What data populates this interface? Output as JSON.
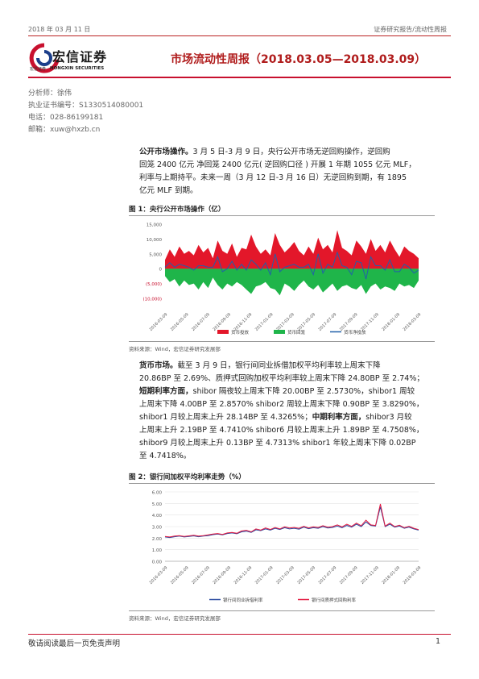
{
  "header": {
    "date": "2018 年 03 月 11 日",
    "category": "证券研究报告/流动性周报",
    "logo_cn": "宏信证券",
    "logo_en": "HONGXIN SECURITIES",
    "logo_sub": "宏信证券",
    "title": "市场流动性周报（2018.03.05—2018.03.09）"
  },
  "analyst": {
    "name": "分析师：徐伟",
    "cert": "执业证书编号：S1330514080001",
    "phone": "电话：028-86199181",
    "email": "邮箱：xuw@hxzb.cn"
  },
  "paragraph1": {
    "lead": "公开市场操作。",
    "lines": [
      "3 月 5 日-3 月 9 日，央行公开市场无逆回购操作，逆回购",
      "回笼 2400 亿元 净回笼 2400 亿元( 逆回购口径 ) 开展 1 年期 1055 亿元 MLF，",
      "利率与上期持平。未来一周（3 月 12 日-3 月 16 日）无逆回购到期，有 1895",
      "亿元 MLF 到期。"
    ]
  },
  "figure1": {
    "caption": "图 1：央行公开市场操作（亿）",
    "source": "资料来源：Wind，宏信证券研究发展部",
    "legend": [
      "货币投放",
      "货币回笼",
      "货币净投放"
    ]
  },
  "paragraph2": {
    "l1a": "货币市场。",
    "l1b": "截至 3 月 9 日，银行间同业拆借加权平均利率较上周末下降",
    "l2": "20.86BP 至 2.69%、质押式回购加权平均利率较上周末下降 24.80BP 至 2.74%；",
    "l3a": "短期利率方面，",
    "l3b": "shibor 隔夜较上周末下降 20.00BP 至 2.5730%，shibor1 周较",
    "l4": "上周末下降 4.00BP 至 2.8570% shibor2 周较上周末下降 0.90BP 至 3.8290%，",
    "l5a": "shibor1 月较上周末上升 28.14BP 至 4.3265%；",
    "l5b": "中期利率方面，",
    "l5c": "shibor3 月较",
    "l6": "上周末上升 2.19BP 至 4.7410% shibor6 月较上周末上升 1.89BP 至 4.7508%，",
    "l7": "shibor9 月较上周末上升 0.13BP 至 4.7313% shibor1 年较上周末下降 0.02BP",
    "l8": "至 4.7418%。"
  },
  "figure2": {
    "caption": "图 2：银行间加权平均利率走势（%）",
    "source": "资料来源：Wind，宏信证券研究发展部",
    "legend": [
      "银行间同业拆借利率",
      "银行间质押式回购利率"
    ]
  },
  "footer": {
    "disclaimer": "敬请阅读最后一页免责声明",
    "page": "1"
  },
  "chart_data": [
    {
      "type": "area",
      "x_ticks": [
        "2016-03-09",
        "2016-05-09",
        "2016-07-09",
        "2016-09-09",
        "2016-11-09",
        "2017-01-09",
        "2017-03-09",
        "2017-05-09",
        "2017-07-09",
        "2017-09-09",
        "2017-11-09",
        "2018-01-09",
        "2018-03-09"
      ],
      "y_ticks": [
        "15,000",
        "10,000",
        "5,000",
        "0",
        "(5,000)",
        "(10,000)"
      ],
      "ylim": [
        -10000,
        15000
      ],
      "series": [
        {
          "name": "货币投放",
          "color": "#e3172a",
          "values": [
            3000,
            6500,
            4000,
            7500,
            5000,
            6000,
            4500,
            8000,
            5500,
            7000,
            3500,
            9500,
            6000,
            5000,
            8500,
            4000,
            7000,
            6500,
            11500,
            7500,
            5000,
            6500,
            4500,
            12000,
            8000,
            5500,
            7000,
            9000,
            6000,
            4500,
            7500,
            5000,
            10500,
            6500,
            8000,
            5500,
            13000,
            7000,
            6000,
            4500,
            9500,
            7500,
            5000,
            10000,
            6000,
            8000,
            5500,
            9500,
            6500,
            4000,
            7500,
            6000,
            5000,
            3500
          ]
        },
        {
          "name": "货币回笼",
          "color": "#1fb54a",
          "values": [
            -2500,
            -4500,
            -3500,
            -6000,
            -4000,
            -5500,
            -5000,
            -7000,
            -4500,
            -6500,
            -3000,
            -5500,
            -7000,
            -5000,
            -6000,
            -4500,
            -5500,
            -7000,
            -8500,
            -6000,
            -5500,
            -4500,
            -6500,
            -7000,
            -9000,
            -5000,
            -6000,
            -7500,
            -5500,
            -4000,
            -6000,
            -7000,
            -5500,
            -8000,
            -6500,
            -5000,
            -7500,
            -6000,
            -5500,
            -6500,
            -7000,
            -5500,
            -8500,
            -6000,
            -5000,
            -7000,
            -6000,
            -6500,
            -7500,
            -5000,
            -6000,
            -5500,
            -6500,
            -4000
          ]
        },
        {
          "name": "货币净投放",
          "color": "#2160a8",
          "values": [
            500,
            2000,
            500,
            1500,
            1000,
            500,
            -500,
            1000,
            1000,
            500,
            500,
            4000,
            -1000,
            0,
            2500,
            -500,
            1500,
            -500,
            3000,
            1500,
            -500,
            2000,
            -2000,
            5000,
            -1000,
            500,
            1000,
            1500,
            500,
            500,
            1500,
            -2000,
            5000,
            -1500,
            1500,
            500,
            5500,
            1000,
            500,
            -2000,
            2500,
            2000,
            -3500,
            4000,
            1000,
            1000,
            -500,
            3000,
            -1000,
            -1000,
            1500,
            500,
            -1500,
            -500
          ]
        }
      ]
    },
    {
      "type": "line",
      "x_ticks": [
        "2016-03-09",
        "2016-05-09",
        "2016-07-09",
        "2016-09-09",
        "2016-11-09",
        "2017-01-09",
        "2017-03-09",
        "2017-05-09",
        "2017-07-09",
        "2017-09-09",
        "2017-11-09",
        "2018-01-09",
        "2018-03-09"
      ],
      "y_ticks": [
        "6.00",
        "5.00",
        "4.00",
        "3.00",
        "2.00",
        "1.00",
        "0.00"
      ],
      "ylim": [
        0,
        6
      ],
      "series": [
        {
          "name": "银行间同业拆借利率",
          "color": "#2a4aa0",
          "values": [
            2.1,
            2.05,
            2.12,
            2.18,
            2.1,
            2.15,
            2.2,
            2.12,
            2.18,
            2.22,
            2.3,
            2.35,
            2.28,
            2.4,
            2.45,
            2.38,
            2.55,
            2.6,
            2.5,
            2.72,
            2.65,
            2.8,
            2.7,
            2.85,
            2.75,
            2.9,
            2.8,
            2.85,
            2.78,
            2.95,
            2.82,
            2.9,
            2.85,
            3.0,
            2.88,
            2.92,
            3.05,
            2.9,
            3.1,
            2.95,
            3.2,
            3.0,
            3.4,
            3.1,
            3.05,
            4.7,
            3.0,
            3.2,
            2.95,
            3.05,
            2.85,
            2.95,
            2.8,
            2.69
          ]
        },
        {
          "name": "银行间质押式回购利率",
          "color": "#e3173f",
          "values": [
            2.15,
            2.1,
            2.18,
            2.22,
            2.15,
            2.2,
            2.25,
            2.18,
            2.22,
            2.28,
            2.35,
            2.4,
            2.32,
            2.45,
            2.5,
            2.42,
            2.62,
            2.68,
            2.55,
            2.8,
            2.7,
            2.88,
            2.75,
            2.92,
            2.8,
            2.98,
            2.88,
            2.92,
            2.85,
            3.02,
            2.88,
            2.98,
            2.92,
            3.08,
            2.95,
            3.0,
            3.15,
            2.98,
            3.2,
            3.02,
            3.3,
            3.08,
            3.55,
            3.15,
            3.1,
            4.95,
            3.05,
            3.3,
            3.0,
            3.12,
            2.9,
            3.02,
            2.85,
            2.74
          ]
        }
      ]
    }
  ]
}
